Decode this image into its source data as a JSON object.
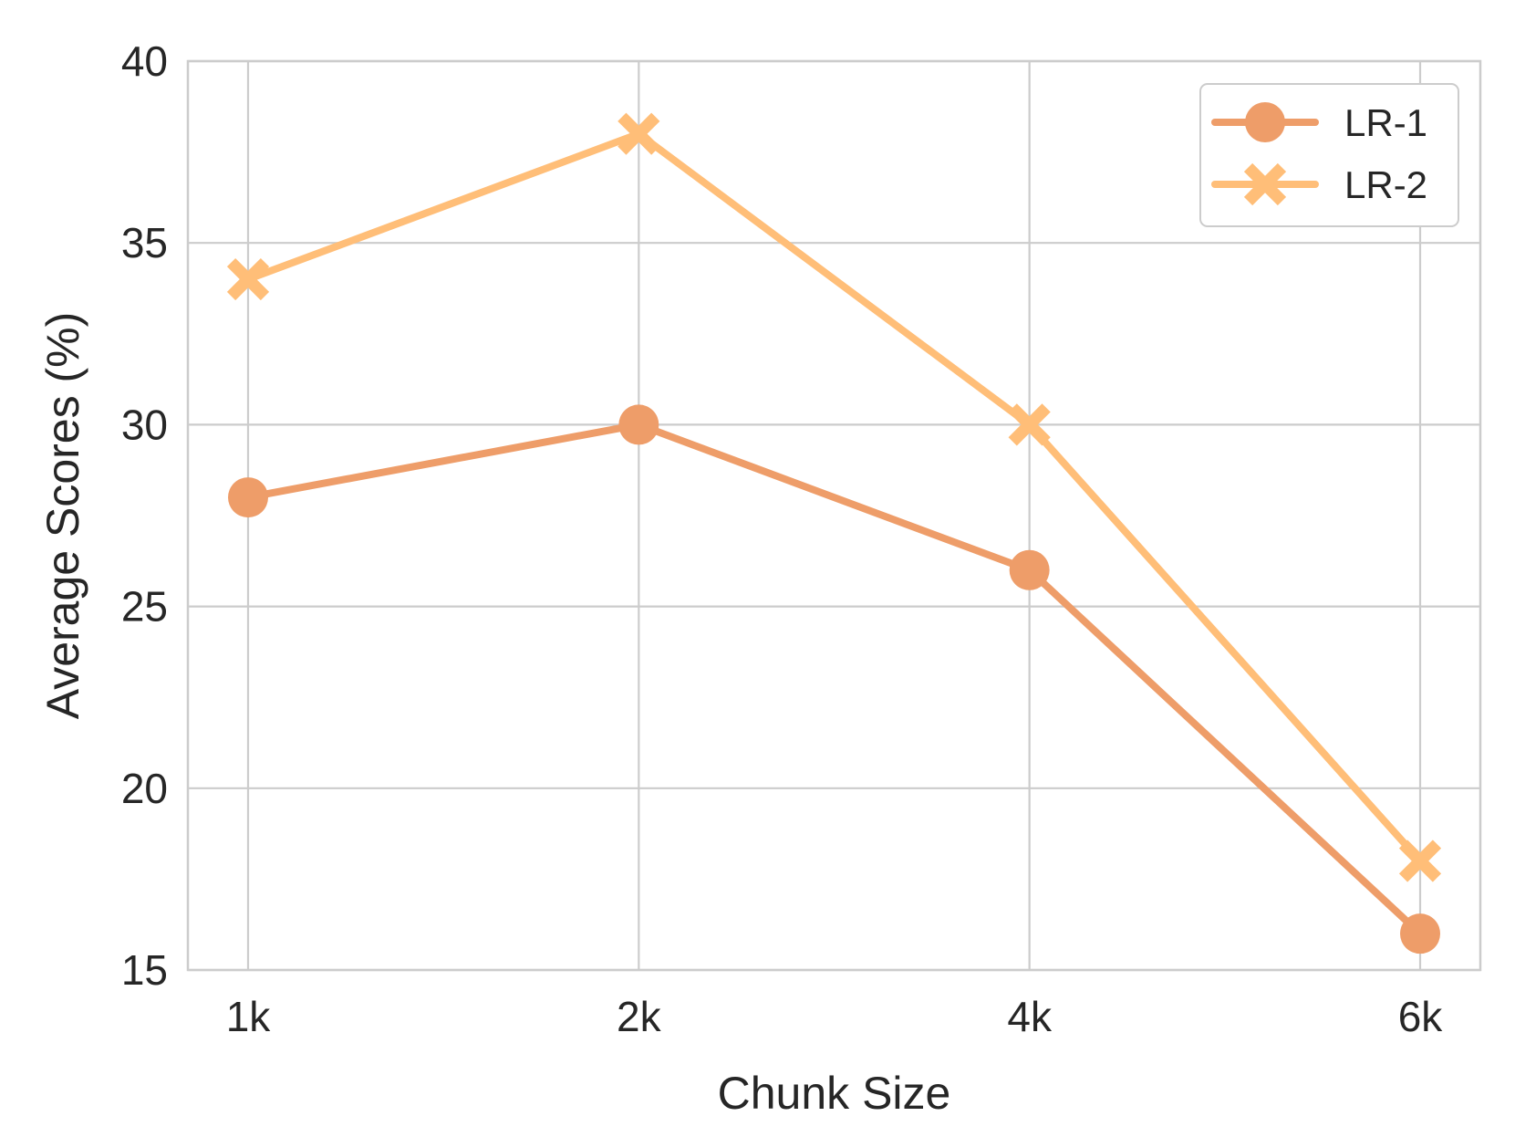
{
  "chart_data": {
    "type": "line",
    "title": "",
    "xlabel": "Chunk Size",
    "ylabel": "Average Scores (%)",
    "categories": [
      "1k",
      "2k",
      "4k",
      "6k"
    ],
    "ylim": [
      15,
      40
    ],
    "yticks": [
      15,
      20,
      25,
      30,
      35,
      40
    ],
    "grid": true,
    "legend_position": "top-right",
    "series": [
      {
        "name": "LR-1",
        "values": [
          28,
          30,
          26,
          16
        ],
        "color": "#EE9D69",
        "marker": "circle"
      },
      {
        "name": "LR-2",
        "values": [
          34,
          38,
          30,
          18
        ],
        "color": "#FFBE78",
        "marker": "x"
      }
    ],
    "grid_color": "#CCCCCC",
    "text_color": "#262626"
  }
}
